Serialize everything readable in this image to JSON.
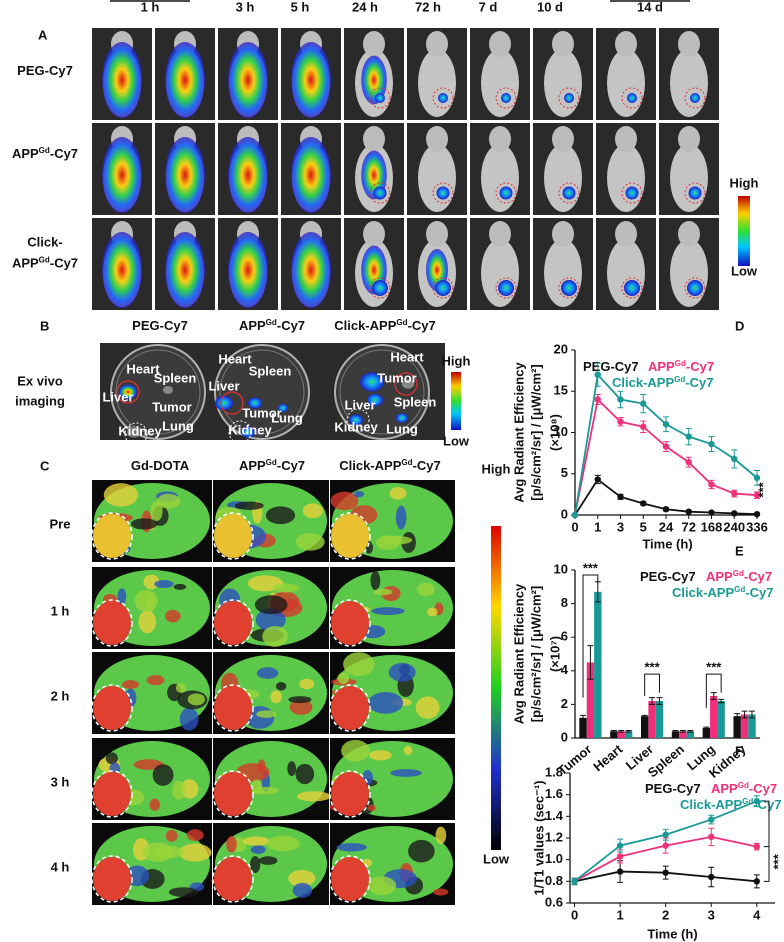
{
  "panel_a": {
    "label": "A",
    "time_headers": [
      "1 h",
      "3 h",
      "5 h",
      "24 h",
      "72 h",
      "7 d",
      "10 d",
      "14 d"
    ],
    "rows": [
      [
        [
          "PEG-Cy7"
        ]
      ],
      [
        [
          "APP",
          "Gd",
          "-Cy7"
        ]
      ],
      [
        [
          "Click-"
        ],
        [
          "APP",
          "Gd",
          "-Cy7"
        ]
      ]
    ],
    "scale": {
      "high": "High",
      "low": "Low"
    }
  },
  "panel_b": {
    "label": "B",
    "headers": [
      [
        "PEG-Cy7"
      ],
      [
        "APP",
        "Gd",
        "-Cy7"
      ],
      [
        "Click-APP",
        "Gd",
        "-Cy7"
      ]
    ],
    "side_label": [
      "Ex vivo",
      "imaging"
    ],
    "dishes": [
      [
        "Heart",
        "Spleen",
        "Liver",
        "Tumor",
        "Kidney",
        "Lung"
      ],
      [
        "Heart",
        "Spleen",
        "Liver",
        "Tumor",
        "Kidney",
        "Lung"
      ],
      [
        "Heart",
        "Tumor",
        "Liver",
        "Spleen",
        "Kidney",
        "Lung"
      ]
    ],
    "scale": {
      "high": "High",
      "low": "Low"
    }
  },
  "panel_c": {
    "label": "C",
    "headers": [
      [
        "Gd-DOTA"
      ],
      [
        "APP",
        "Gd",
        "-Cy7"
      ],
      [
        "Click-APP",
        "Gd",
        "-Cy7"
      ]
    ],
    "rows": [
      "Pre",
      "1 h",
      "2 h",
      "3 h",
      "4 h"
    ],
    "scale": {
      "high": "High",
      "low": "Low"
    }
  },
  "chart_data": [
    {
      "type": "line",
      "panel_label": "D",
      "xlabel": "Time (h)",
      "ylabel": [
        "Avg Radiant Efficiency",
        "[p/s/cm²/sr] / [μW/cm²]",
        "(×10⁸)"
      ],
      "categories": [
        "0",
        "1",
        "3",
        "5",
        "24",
        "72",
        "168",
        "240",
        "336"
      ],
      "series": [
        {
          "name": [
            "PEG-Cy7"
          ],
          "color": "#111111",
          "values": [
            0,
            4.3,
            2.2,
            1.4,
            0.7,
            0.4,
            0.3,
            0.2,
            0.1
          ],
          "errors": [
            0,
            0.5,
            0.3,
            0.2,
            0.2,
            0.1,
            0.1,
            0.1,
            0.1
          ]
        },
        {
          "name": [
            "APP",
            "Gd",
            "-Cy7"
          ],
          "color": "#f0307a",
          "values": [
            0,
            14,
            11.3,
            10.7,
            8.3,
            6.4,
            3.7,
            2.6,
            2.4
          ],
          "errors": [
            0,
            0.6,
            0.5,
            0.7,
            0.6,
            0.6,
            0.5,
            0.4,
            0.4
          ]
        },
        {
          "name": [
            "Click-APP",
            "Gd",
            "-Cy7"
          ],
          "color": "#1a9a96",
          "values": [
            0,
            17,
            14,
            13.5,
            11,
            9.5,
            8.6,
            6.8,
            4.5
          ],
          "errors": [
            0,
            1.4,
            1.0,
            1.1,
            0.9,
            1.0,
            0.9,
            1.1,
            0.9
          ]
        }
      ],
      "ylim": [
        0,
        20
      ],
      "yticks": [
        0,
        5,
        10,
        15,
        20
      ],
      "annotations": [
        "***"
      ]
    },
    {
      "type": "bar",
      "panel_label": "E",
      "ylabel": [
        "Avg Radiant Efficiency",
        "[p/s/cm²/sr] / [μW/cm²]",
        "(×10⁷)"
      ],
      "categories": [
        "Tumor",
        "Heart",
        "Liver",
        "Spleen",
        "Lung",
        "Kidney"
      ],
      "series": [
        {
          "name": [
            "PEG-Cy7"
          ],
          "color": "#111111",
          "values": [
            1.2,
            0.4,
            1.3,
            0.4,
            0.6,
            1.3
          ],
          "errors": [
            0.15,
            0.05,
            0.05,
            0.05,
            0.05,
            0.15
          ]
        },
        {
          "name": [
            "APP",
            "Gd",
            "-Cy7"
          ],
          "color": "#f0307a",
          "values": [
            4.5,
            0.4,
            2.2,
            0.4,
            2.5,
            1.4
          ],
          "errors": [
            1.0,
            0.05,
            0.2,
            0.05,
            0.2,
            0.2
          ]
        },
        {
          "name": [
            "Click-APP",
            "Gd",
            "-Cy7"
          ],
          "color": "#1a9a96",
          "values": [
            8.7,
            0.4,
            2.2,
            0.4,
            2.2,
            1.4
          ],
          "errors": [
            0.6,
            0.05,
            0.2,
            0.05,
            0.1,
            0.2
          ]
        }
      ],
      "ylim": [
        0,
        10
      ],
      "yticks": [
        0,
        2,
        4,
        6,
        8,
        10
      ],
      "annotations": [
        "***",
        "***",
        "***"
      ]
    },
    {
      "type": "line",
      "panel_label": "F",
      "xlabel": "Time (h)",
      "ylabel": [
        "1/T1 values (sec⁻¹)"
      ],
      "x": [
        0,
        1,
        2,
        3,
        4
      ],
      "series": [
        {
          "name": [
            "PEG-Cy7"
          ],
          "color": "#111111",
          "values": [
            0.8,
            0.89,
            0.88,
            0.84,
            0.8
          ],
          "errors": [
            0.03,
            0.1,
            0.06,
            0.09,
            0.06
          ]
        },
        {
          "name": [
            "APP",
            "Gd",
            "-Cy7"
          ],
          "color": "#f0307a",
          "values": [
            0.8,
            1.03,
            1.13,
            1.21,
            1.12
          ],
          "errors": [
            0.03,
            0.06,
            0.07,
            0.08,
            0.03
          ]
        },
        {
          "name": [
            "Click-APP",
            "Gd",
            "-Cy7"
          ],
          "color": "#1a9a96",
          "values": [
            0.8,
            1.13,
            1.23,
            1.37,
            1.54
          ],
          "errors": [
            0.03,
            0.06,
            0.05,
            0.04,
            0.05
          ]
        }
      ],
      "xlim": [
        -0.1,
        4.4
      ],
      "xticks": [
        0,
        1,
        2,
        3,
        4
      ],
      "ylim": [
        0.6,
        1.8
      ],
      "yticks": [
        0.6,
        0.8,
        {
          "value": 1.0,
          "label": "1.0"
        },
        1.2,
        1.4,
        1.6,
        1.8
      ],
      "annotations": [
        "***"
      ]
    }
  ]
}
